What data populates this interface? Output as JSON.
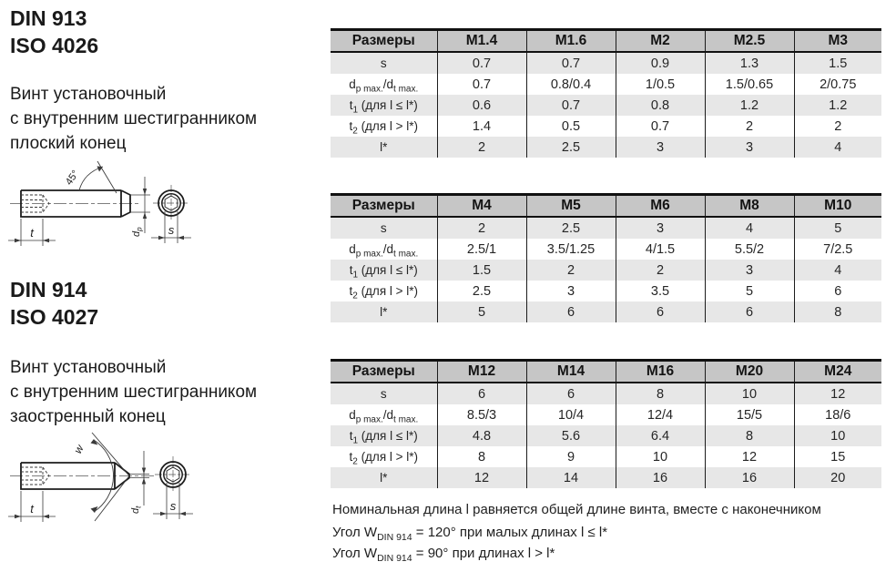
{
  "colors": {
    "header_bg": "#c6c6c6",
    "row_alt_bg": "#e7e7e7",
    "row_bg": "#ffffff",
    "border": "#111111",
    "line_art": "#1c1c1c"
  },
  "left": {
    "sections": [
      {
        "standard": [
          "DIN 913",
          "ISO 4026"
        ],
        "description": [
          "Винт установочный",
          "с внутренним шестигранником",
          "плоский конец"
        ],
        "drawing": {
          "angle": "45°",
          "t": "t",
          "d_base": "d",
          "d_sub": "p",
          "s": "s"
        }
      },
      {
        "standard": [
          "DIN 914",
          "ISO 4027"
        ],
        "description": [
          "Винт установочный",
          "с внутренним шестигранником",
          "заостренный конец"
        ],
        "drawing": {
          "angle": "w",
          "t": "t",
          "d_base": "d",
          "d_sub": "t",
          "s": "s"
        }
      }
    ]
  },
  "tables": [
    {
      "header": [
        "Размеры",
        "M1.4",
        "M1.6",
        "M2",
        "M2.5",
        "M3"
      ],
      "rows": [
        {
          "label": [
            [
              "s",
              false
            ]
          ],
          "values": [
            "0.7",
            "0.7",
            "0.9",
            "1.3",
            "1.5"
          ]
        },
        {
          "label": [
            [
              "d",
              false
            ],
            [
              "p max.",
              true
            ],
            [
              "/d",
              false
            ],
            [
              "t max.",
              true
            ]
          ],
          "values": [
            "0.7",
            "0.8/0.4",
            "1/0.5",
            "1.5/0.65",
            "2/0.75"
          ]
        },
        {
          "label": [
            [
              "t",
              false
            ],
            [
              "1",
              true
            ],
            [
              " (для l ≤ l*)",
              false
            ]
          ],
          "values": [
            "0.6",
            "0.7",
            "0.8",
            "1.2",
            "1.2"
          ]
        },
        {
          "label": [
            [
              "t",
              false
            ],
            [
              "2",
              true
            ],
            [
              " (для l > l*)",
              false
            ]
          ],
          "values": [
            "1.4",
            "0.5",
            "0.7",
            "2",
            "2"
          ]
        },
        {
          "label": [
            [
              "l*",
              false
            ]
          ],
          "values": [
            "2",
            "2.5",
            "3",
            "3",
            "4"
          ]
        }
      ]
    },
    {
      "header": [
        "Размеры",
        "M4",
        "M5",
        "M6",
        "M8",
        "M10"
      ],
      "rows": [
        {
          "label": [
            [
              "s",
              false
            ]
          ],
          "values": [
            "2",
            "2.5",
            "3",
            "4",
            "5"
          ]
        },
        {
          "label": [
            [
              "d",
              false
            ],
            [
              "p max.",
              true
            ],
            [
              "/d",
              false
            ],
            [
              "t max.",
              true
            ]
          ],
          "values": [
            "2.5/1",
            "3.5/1.25",
            "4/1.5",
            "5.5/2",
            "7/2.5"
          ]
        },
        {
          "label": [
            [
              "t",
              false
            ],
            [
              "1",
              true
            ],
            [
              " (для l ≤ l*)",
              false
            ]
          ],
          "values": [
            "1.5",
            "2",
            "2",
            "3",
            "4"
          ]
        },
        {
          "label": [
            [
              "t",
              false
            ],
            [
              "2",
              true
            ],
            [
              " (для l > l*)",
              false
            ]
          ],
          "values": [
            "2.5",
            "3",
            "3.5",
            "5",
            "6"
          ]
        },
        {
          "label": [
            [
              "l*",
              false
            ]
          ],
          "values": [
            "5",
            "6",
            "6",
            "6",
            "8"
          ]
        }
      ]
    },
    {
      "header": [
        "Размеры",
        "M12",
        "M14",
        "M16",
        "M20",
        "M24"
      ],
      "rows": [
        {
          "label": [
            [
              "s",
              false
            ]
          ],
          "values": [
            "6",
            "6",
            "8",
            "10",
            "12"
          ]
        },
        {
          "label": [
            [
              "d",
              false
            ],
            [
              "p max.",
              true
            ],
            [
              "/d",
              false
            ],
            [
              "t max.",
              true
            ]
          ],
          "values": [
            "8.5/3",
            "10/4",
            "12/4",
            "15/5",
            "18/6"
          ]
        },
        {
          "label": [
            [
              "t",
              false
            ],
            [
              "1",
              true
            ],
            [
              " (для l ≤ l*)",
              false
            ]
          ],
          "values": [
            "4.8",
            "5.6",
            "6.4",
            "8",
            "10"
          ]
        },
        {
          "label": [
            [
              "t",
              false
            ],
            [
              "2",
              true
            ],
            [
              " (для l > l*)",
              false
            ]
          ],
          "values": [
            "8",
            "9",
            "10",
            "12",
            "15"
          ]
        },
        {
          "label": [
            [
              "l*",
              false
            ]
          ],
          "values": [
            "12",
            "14",
            "16",
            "16",
            "20"
          ]
        }
      ]
    }
  ],
  "notes": [
    {
      "segments": [
        [
          "Номинальная длина l равняется общей длине винта, вместе с наконечником",
          false
        ]
      ]
    },
    {
      "segments": [
        [
          "Угол W",
          false
        ],
        [
          "DIN 914",
          true
        ],
        [
          " = 120° при малых длинах l ≤ l*",
          false
        ]
      ]
    },
    {
      "segments": [
        [
          "Угол W",
          false
        ],
        [
          "DIN 914",
          true
        ],
        [
          " = 90° при длинах l > l*",
          false
        ]
      ]
    }
  ]
}
